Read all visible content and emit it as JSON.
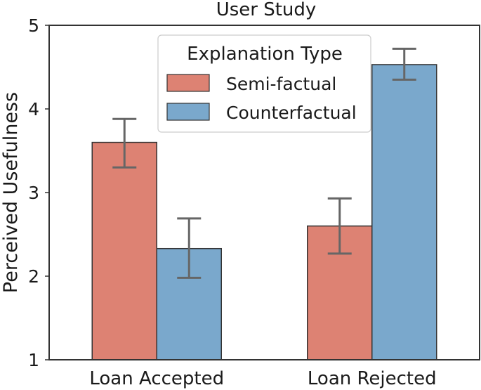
{
  "chart_data": {
    "type": "bar",
    "title": "User Study",
    "xlabel": "",
    "ylabel": "Perceived Usefulness",
    "ylim": [
      1,
      5
    ],
    "yticks": [
      1,
      2,
      3,
      4,
      5
    ],
    "grid": false,
    "categories": [
      "Loan Accepted",
      "Loan Rejected"
    ],
    "legend": {
      "title": "Explanation Type",
      "placement": "top-center"
    },
    "series": [
      {
        "name": "Semi-factual",
        "color": "#dd8273",
        "values": [
          3.6,
          2.6
        ],
        "error_low": [
          3.3,
          2.27
        ],
        "error_high": [
          3.88,
          2.93
        ]
      },
      {
        "name": "Counterfactual",
        "color": "#7aa8cc",
        "values": [
          2.33,
          4.53
        ],
        "error_low": [
          1.98,
          4.35
        ],
        "error_high": [
          2.69,
          4.72
        ]
      }
    ]
  }
}
